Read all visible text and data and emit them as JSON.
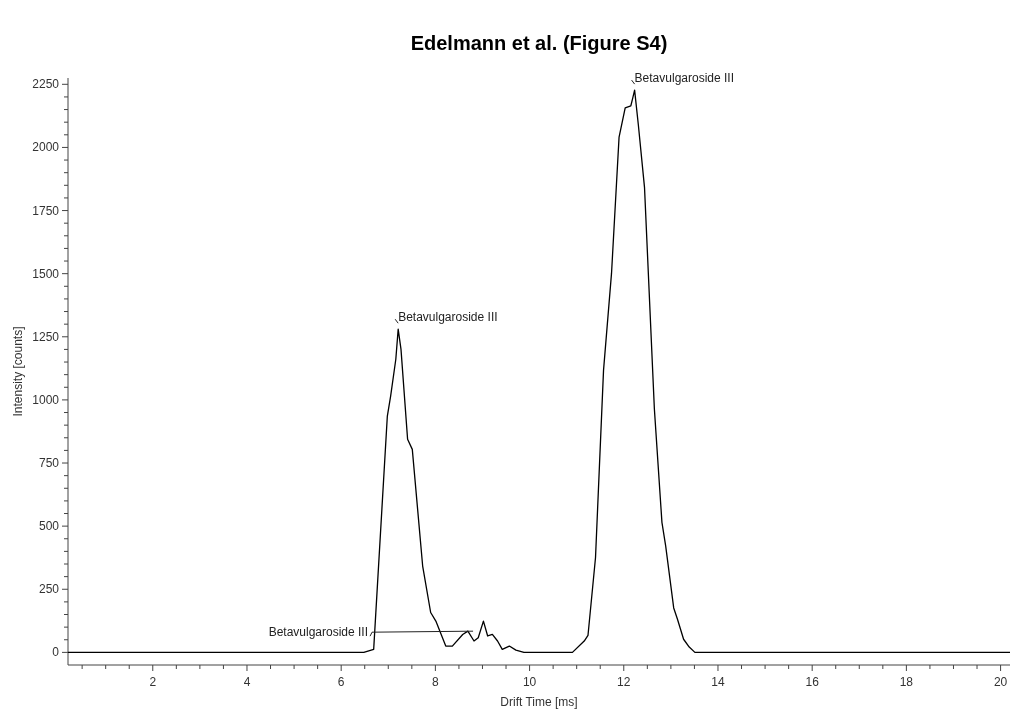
{
  "chart_data": {
    "type": "line",
    "title": "Edelmann et al. (Figure S4)",
    "xlabel": "Drift Time [ms]",
    "ylabel": "Intensity [counts]",
    "color": "#000000",
    "x": [
      0.2,
      6.48,
      6.69,
      6.98,
      7.05,
      7.16,
      7.21,
      7.27,
      7.41,
      7.51,
      7.73,
      7.9,
      8.01,
      8.22,
      8.36,
      8.58,
      8.69,
      8.82,
      8.91,
      9.02,
      9.11,
      9.21,
      9.32,
      9.42,
      9.57,
      9.71,
      9.88,
      10.91,
      11.16,
      11.24,
      11.4,
      11.57,
      11.74,
      11.9,
      12.03,
      12.15,
      12.19,
      12.23,
      12.31,
      12.44,
      12.65,
      12.81,
      12.89,
      13.06,
      13.14,
      13.27,
      13.39,
      13.51,
      20.2
    ],
    "values": [
      0,
      0,
      12,
      936,
      1015,
      1161,
      1280,
      1200,
      844,
      804,
      342,
      158,
      124,
      25,
      25,
      71,
      84,
      45,
      58,
      124,
      65,
      71,
      45,
      12,
      25,
      9,
      0,
      0,
      45,
      67,
      376,
      1117,
      1502,
      2041,
      2157,
      2165,
      2195,
      2227,
      2088,
      1842,
      963,
      515,
      421,
      176,
      131,
      52,
      21,
      0,
      0
    ],
    "xlim": [
      0.2,
      20.2
    ],
    "ylim": [
      -50,
      2275
    ],
    "xticks": [
      {
        "value": 0.5,
        "label": null
      },
      {
        "value": 1,
        "label": null
      },
      {
        "value": 1.5,
        "label": null
      },
      2,
      {
        "value": 2.5,
        "label": null
      },
      {
        "value": 3,
        "label": null
      },
      {
        "value": 3.5,
        "label": null
      },
      4,
      {
        "value": 4.5,
        "label": null
      },
      {
        "value": 5,
        "label": null
      },
      {
        "value": 5.5,
        "label": null
      },
      6,
      {
        "value": 6.5,
        "label": null
      },
      {
        "value": 7,
        "label": null
      },
      {
        "value": 7.5,
        "label": null
      },
      8,
      {
        "value": 8.5,
        "label": null
      },
      {
        "value": 9,
        "label": null
      },
      {
        "value": 9.5,
        "label": null
      },
      10,
      {
        "value": 10.5,
        "label": null
      },
      {
        "value": 11,
        "label": null
      },
      {
        "value": 11.5,
        "label": null
      },
      12,
      {
        "value": 12.5,
        "label": null
      },
      {
        "value": 13,
        "label": null
      },
      {
        "value": 13.5,
        "label": null
      },
      14,
      {
        "value": 14.5,
        "label": null
      },
      {
        "value": 15,
        "label": null
      },
      {
        "value": 15.5,
        "label": null
      },
      16,
      {
        "value": 16.5,
        "label": null
      },
      {
        "value": 17,
        "label": null
      },
      {
        "value": 17.5,
        "label": null
      },
      18,
      {
        "value": 18.5,
        "label": null
      },
      {
        "value": 19,
        "label": null
      },
      {
        "value": 19.5,
        "label": null
      },
      20
    ],
    "yticks": [
      0,
      {
        "value": 50,
        "label": null
      },
      {
        "value": 100,
        "label": null
      },
      {
        "value": 150,
        "label": null
      },
      {
        "value": 200,
        "label": null
      },
      250,
      {
        "value": 300,
        "label": null
      },
      {
        "value": 350,
        "label": null
      },
      {
        "value": 400,
        "label": null
      },
      {
        "value": 450,
        "label": null
      },
      500,
      {
        "value": 550,
        "label": null
      },
      {
        "value": 600,
        "label": null
      },
      {
        "value": 650,
        "label": null
      },
      {
        "value": 700,
        "label": null
      },
      750,
      {
        "value": 800,
        "label": null
      },
      {
        "value": 850,
        "label": null
      },
      {
        "value": 900,
        "label": null
      },
      {
        "value": 950,
        "label": null
      },
      1000,
      {
        "value": 1050,
        "label": null
      },
      {
        "value": 1100,
        "label": null
      },
      {
        "value": 1150,
        "label": null
      },
      {
        "value": 1200,
        "label": null
      },
      1250,
      {
        "value": 1300,
        "label": null
      },
      {
        "value": 1350,
        "label": null
      },
      {
        "value": 1400,
        "label": null
      },
      {
        "value": 1450,
        "label": null
      },
      1500,
      {
        "value": 1550,
        "label": null
      },
      {
        "value": 1600,
        "label": null
      },
      {
        "value": 1650,
        "label": null
      },
      {
        "value": 1700,
        "label": null
      },
      1750,
      {
        "value": 1800,
        "label": null
      },
      {
        "value": 1850,
        "label": null
      },
      {
        "value": 1900,
        "label": null
      },
      {
        "value": 1950,
        "label": null
      },
      2000,
      {
        "value": 2050,
        "label": null
      },
      {
        "value": 2100,
        "label": null
      },
      {
        "value": 2150,
        "label": null
      },
      {
        "value": 2200,
        "label": null
      },
      2250
    ],
    "annotations": [
      {
        "text": "Betavulgaroside III",
        "x": 7.21,
        "y": 1280
      },
      {
        "text": "Betavulgaroside III",
        "x": 12.23,
        "y": 2227
      },
      {
        "text": "Betavulgaroside III",
        "x": 8.8,
        "y": 80
      }
    ],
    "grid": false
  }
}
